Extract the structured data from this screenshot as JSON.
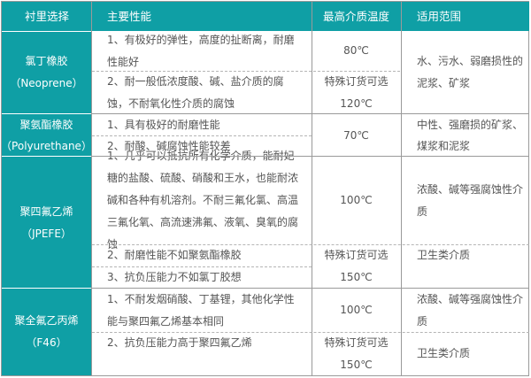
{
  "header": {
    "lining": "衬里选择",
    "properties": "主要性能",
    "max_temp": "最高介质温度",
    "scope": "适用范围"
  },
  "rows": [
    {
      "name": "氯丁橡胶",
      "code": "（Neoprene）",
      "props": [
        "1、有极好的弹性，高度的扯断离，耐磨性能好",
        "2、耐一般低浓度酸、碱、盐介质的腐蚀，不耐氧化性介质的腐蚀"
      ],
      "temp": "80℃",
      "special": "特殊订货可选",
      "special_temp": "120℃",
      "scope": "水、污水、弱磨损性的泥浆、矿浆"
    },
    {
      "name": "聚氨酯橡胶",
      "code": "（Polyurethane）",
      "props": [
        "1、具有极好的耐磨性能",
        "2、耐酸、碱腐蚀性能较差"
      ],
      "temp": "70℃",
      "scope": "中性、强磨损的矿浆、煤浆和泥浆"
    },
    {
      "name": "聚四氟乙烯",
      "code": "（JPEFE）",
      "props": [
        "1、几乎可以抵抗所有化学介质，能耐妃糖的盐酸、硫酸、硝酸和王水，也能耐浓碱和各种有机溶剂。不耐三氟化氯、高温三氟化氧、高流速沸氟、液氧、臭氧的腐蚀",
        "2、耐磨性能不如聚氨酯橡胶",
        "3、抗负压能力不如氯丁胶想"
      ],
      "temp": "100℃",
      "special": "特殊订货可选",
      "special_temp": "150℃",
      "scope": "浓酸、碱等强腐蚀性介质",
      "scope2": "卫生类介质"
    },
    {
      "name": "聚全氟乙丙烯",
      "code": "（F46）",
      "props": [
        "1、不耐发烟硝酸、丁基锂，其他化学性能与聚四氟乙烯基本相同",
        "2、抗负压能力高于聚四氟乙烯"
      ],
      "temp": "100℃",
      "special": "特殊订货可选",
      "special_temp": "150℃",
      "scope": "浓酸、碱等强腐蚀性介质",
      "scope2": "卫生类介质"
    }
  ],
  "colors": {
    "header_bg": "#0f9fa5",
    "text": "#555555",
    "border": "#9a9a9a"
  }
}
